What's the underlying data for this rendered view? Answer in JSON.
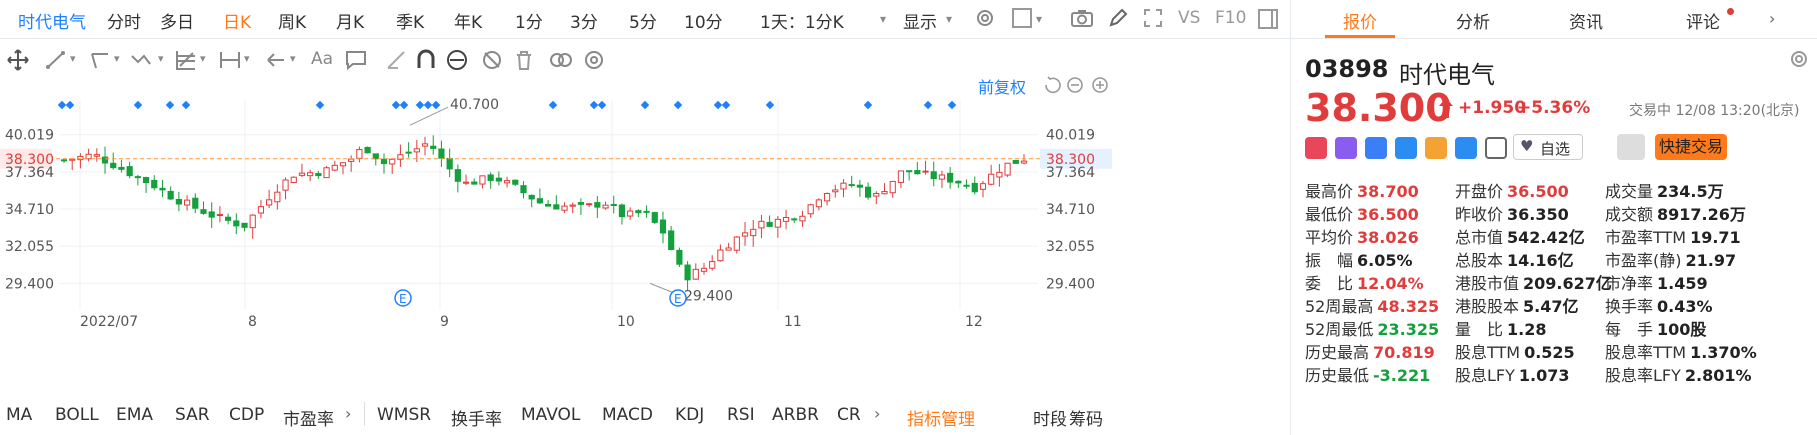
{
  "periods": [
    "时代电气",
    "分时",
    "多日",
    "日K",
    "周K",
    "月K",
    "季K",
    "年K",
    "1分",
    "3分",
    "5分",
    "10分",
    "1天：1分K",
    "显示",
    "VS",
    "F10"
  ],
  "chart": {
    "adjust_label": "前复权",
    "price_ticks": [
      "40.019",
      "38.300",
      "37.364",
      "34.710",
      "32.055",
      "29.400"
    ],
    "price_values": [
      40.019,
      38.3,
      37.364,
      34.71,
      32.055,
      29.4
    ],
    "ylim": [
      27.5,
      42.5
    ],
    "high_label": "40.700",
    "low_label": "29.400",
    "last_price": 38.3,
    "x_labels": [
      "2022/07",
      "8",
      "9",
      "10",
      "11",
      "12"
    ],
    "event_marker": "E",
    "up_color": "#e03c3c",
    "down_color": "#14a03c"
  },
  "indicators": [
    "MA",
    "BOLL",
    "EMA",
    "SAR",
    "CDP",
    "市盈率",
    "WMSR",
    "换手率",
    "MAVOL",
    "MACD",
    "KDJ",
    "RSI",
    "ARBR",
    "CR",
    "指标管理",
    "时段",
    "筹码"
  ],
  "tabs": [
    "报价",
    "分析",
    "资讯",
    "评论"
  ],
  "quote": {
    "code": "03898",
    "name": "时代电气",
    "price": "38.300",
    "change": "+1.950",
    "change_pct": "+5.36%",
    "status": "交易中 12/08 13:20(北京)",
    "watchlist_label": "自选",
    "trade_button": "快捷交易"
  },
  "fields": [
    [
      {
        "label": "最高价",
        "value": "38.700",
        "c": "red"
      },
      {
        "label": "开盘价",
        "value": "36.500",
        "c": "red"
      },
      {
        "label": "成交量",
        "value": "234.5万",
        "c": "dark"
      }
    ],
    [
      {
        "label": "最低价",
        "value": "36.500",
        "c": "red"
      },
      {
        "label": "昨收价",
        "value": "36.350",
        "c": "dark"
      },
      {
        "label": "成交额",
        "value": "8917.26万",
        "c": "dark"
      }
    ],
    [
      {
        "label": "平均价",
        "value": "38.026",
        "c": "red"
      },
      {
        "label": "总市值",
        "value": "542.42亿",
        "c": "dark"
      },
      {
        "label": "市盈率TTM",
        "value": "19.71",
        "c": "dark"
      }
    ],
    [
      {
        "label": "振　幅",
        "value": "6.05%",
        "c": "dark"
      },
      {
        "label": "总股本",
        "value": "14.16亿",
        "c": "dark"
      },
      {
        "label": "市盈率(静)",
        "value": "21.97",
        "c": "dark"
      }
    ],
    [
      {
        "label": "委　比",
        "value": "12.04%",
        "c": "red"
      },
      {
        "label": "港股市值",
        "value": "209.627亿",
        "c": "dark"
      },
      {
        "label": "市净率",
        "value": "1.459",
        "c": "dark"
      }
    ],
    [
      {
        "label": "52周最高",
        "value": "48.325",
        "c": "red"
      },
      {
        "label": "港股股本",
        "value": "5.47亿",
        "c": "dark"
      },
      {
        "label": "换手率",
        "value": "0.43%",
        "c": "dark"
      }
    ],
    [
      {
        "label": "52周最低",
        "value": "23.325",
        "c": "green"
      },
      {
        "label": "量　比",
        "value": "1.28",
        "c": "dark"
      },
      {
        "label": "每　手",
        "value": "100股",
        "c": "dark"
      }
    ],
    [
      {
        "label": "历史最高",
        "value": "70.819",
        "c": "red"
      },
      {
        "label": "股息TTM",
        "value": "0.525",
        "c": "dark"
      },
      {
        "label": "股息率TTM",
        "value": "1.370%",
        "c": "dark"
      }
    ],
    [
      {
        "label": "历史最低",
        "value": "-3.221",
        "c": "green"
      },
      {
        "label": "股息LFY",
        "value": "1.073",
        "c": "dark"
      },
      {
        "label": "股息率LFY",
        "value": "2.801%",
        "c": "dark"
      }
    ]
  ]
}
